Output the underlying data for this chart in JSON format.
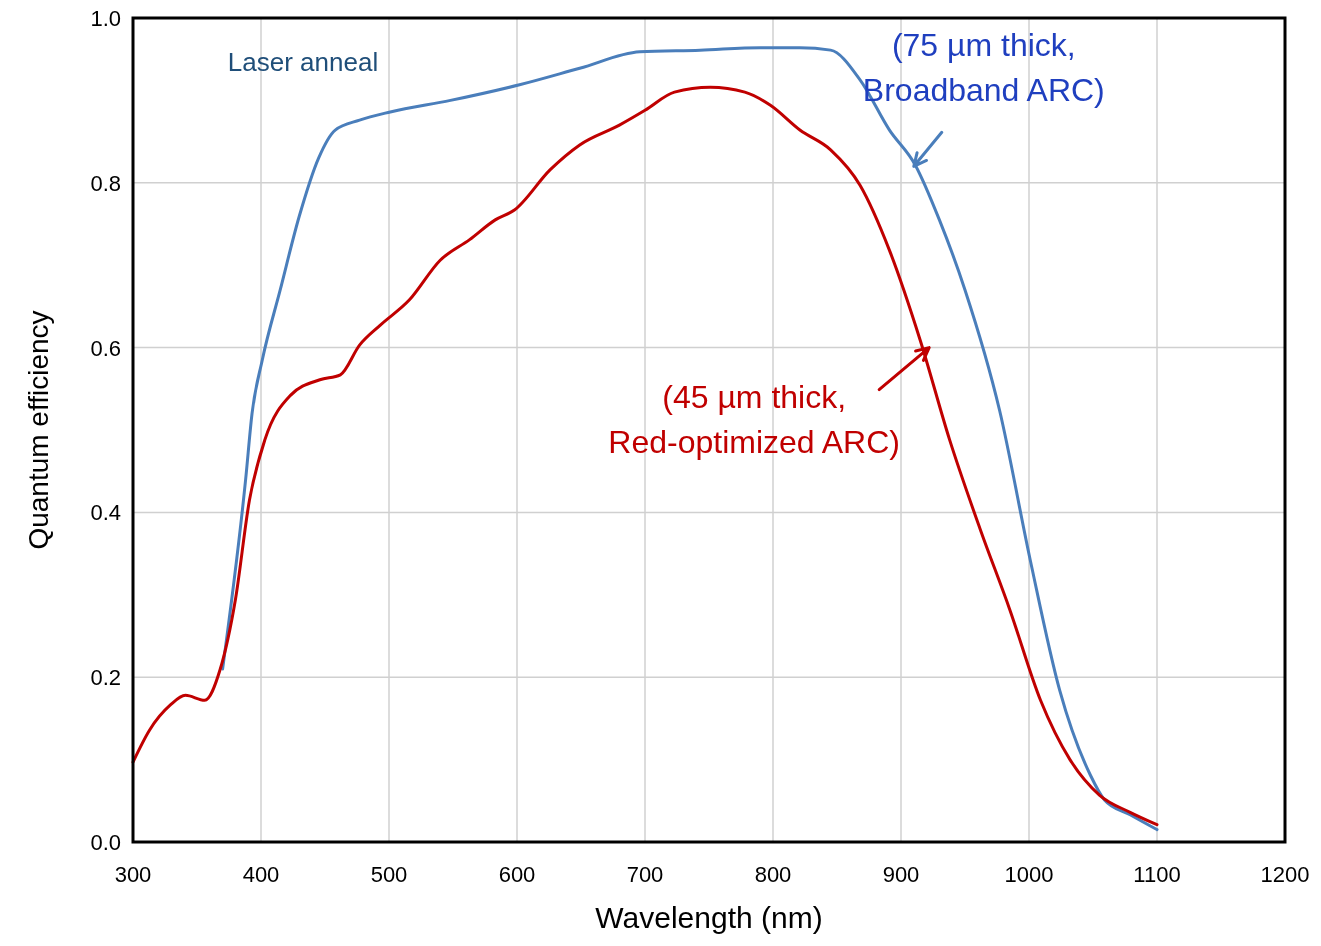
{
  "chart_data": {
    "type": "line",
    "xlabel": "Wavelength (nm)",
    "ylabel": "Quantum efficiency",
    "xlim": [
      300,
      1200
    ],
    "ylim": [
      0,
      1
    ],
    "xticks": [
      300,
      400,
      500,
      600,
      700,
      800,
      900,
      1000,
      1100,
      1200
    ],
    "yticks": [
      {
        "value": 0,
        "label": "0.0"
      },
      {
        "value": 0.2,
        "label": "0.2"
      },
      {
        "value": 0.4,
        "label": "0.4"
      },
      {
        "value": 0.6,
        "label": "0.6"
      },
      {
        "value": 0.8,
        "label": "0.8"
      },
      {
        "value": 1,
        "label": "1.0"
      }
    ],
    "grid": true,
    "line_style": "solid",
    "series": [
      {
        "color": "#4a7ebb",
        "x": [
          370,
          388,
          393,
          401,
          415,
          430,
          445,
          458,
          477,
          501,
          548,
          602,
          649,
          696,
          743,
          790,
          821,
          845,
          868,
          891,
          911,
          930,
          950,
          977,
          1001,
          1024,
          1048,
          1059,
          1079,
          1100
        ],
        "values": [
          0.21,
          0.44,
          0.52,
          0.585,
          0.67,
          0.76,
          0.83,
          0.864,
          0.876,
          0.886,
          0.9,
          0.919,
          0.939,
          0.959,
          0.961,
          0.964,
          0.964,
          0.961,
          0.925,
          0.864,
          0.822,
          0.755,
          0.67,
          0.524,
          0.342,
          0.184,
          0.081,
          0.051,
          0.033,
          0.015
        ]
      },
      {
        "color": "#c00000",
        "x": [
          300,
          313,
          329,
          341,
          356,
          368,
          380,
          391,
          403,
          423,
          446,
          462,
          477,
          493,
          516,
          540,
          563,
          583,
          598,
          626,
          649,
          680,
          700,
          723,
          751,
          778,
          798,
          821,
          845,
          868,
          891,
          915,
          938,
          962,
          985,
          1009,
          1032,
          1055,
          1079,
          1100
        ],
        "values": [
          0.097,
          0.136,
          0.166,
          0.178,
          0.172,
          0.209,
          0.294,
          0.415,
          0.488,
          0.542,
          0.561,
          0.567,
          0.603,
          0.627,
          0.658,
          0.706,
          0.731,
          0.755,
          0.767,
          0.816,
          0.846,
          0.87,
          0.888,
          0.91,
          0.916,
          0.91,
          0.894,
          0.864,
          0.84,
          0.797,
          0.718,
          0.609,
          0.488,
          0.379,
          0.282,
          0.172,
          0.1,
          0.057,
          0.036,
          0.021
        ]
      }
    ],
    "annotations": [
      "Laser anneal",
      {
        "text": "(75 µm thick,\nBroadband ARC)",
        "x": 910,
        "y": 0.82
      },
      {
        "text": "(45 µm thick,\nRed-optimized ARC)",
        "x": 922,
        "y": 0.6
      }
    ]
  }
}
